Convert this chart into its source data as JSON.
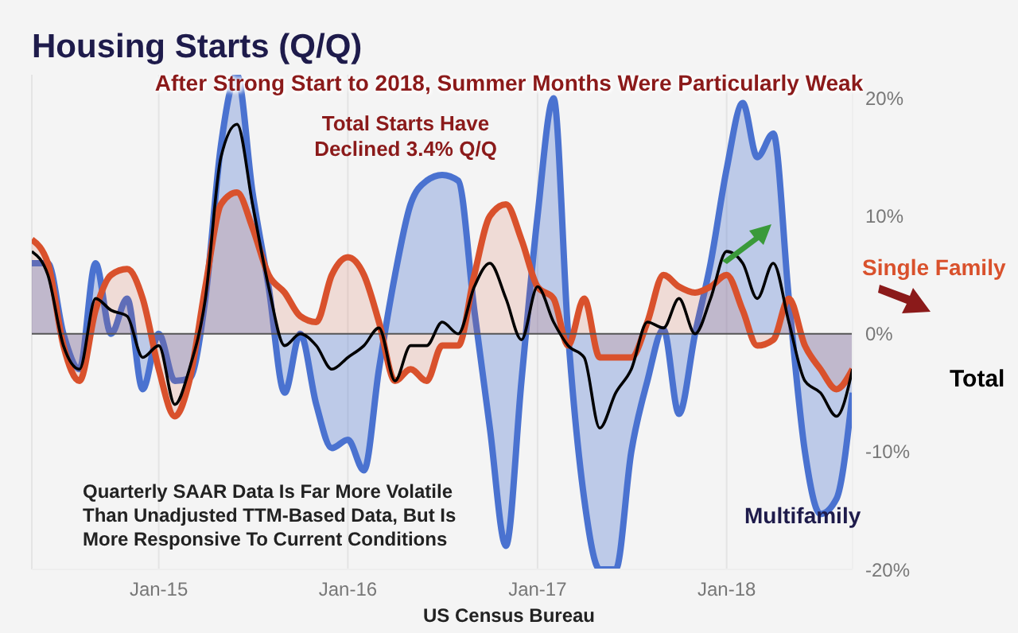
{
  "chart_data": {
    "type": "area",
    "title": "Housing Starts (Q/Q)",
    "subtitle": "After Strong Start to 2018, Summer Months Were Particularly Weak",
    "annotations": [
      "Total Starts Have Declined 3.4% Q/Q",
      "Quarterly SAAR Data Is Far More Volatile Than Unadjusted TTM-Based Data, But Is More Responsive To Current Conditions",
      "US Census Bureau"
    ],
    "x": [
      "2014-05",
      "2014-06",
      "2014-07",
      "2014-08",
      "2014-09",
      "2014-10",
      "2014-11",
      "2014-12",
      "2015-01",
      "2015-02",
      "2015-03",
      "2015-04",
      "2015-05",
      "2015-06",
      "2015-07",
      "2015-08",
      "2015-09",
      "2015-10",
      "2015-11",
      "2015-12",
      "2016-01",
      "2016-02",
      "2016-03",
      "2016-04",
      "2016-05",
      "2016-06",
      "2016-07",
      "2016-08",
      "2016-09",
      "2016-10",
      "2016-11",
      "2016-12",
      "2017-01",
      "2017-02",
      "2017-03",
      "2017-04",
      "2017-05",
      "2017-06",
      "2017-07",
      "2017-08",
      "2017-09",
      "2017-10",
      "2017-11",
      "2017-12",
      "2018-01",
      "2018-02",
      "2018-03",
      "2018-04",
      "2018-05",
      "2018-06",
      "2018-07",
      "2018-08",
      "2018-09"
    ],
    "series": [
      {
        "name": "Multifamily",
        "type": "area",
        "color": "#4a72d0",
        "values": [
          6,
          6,
          0,
          -3,
          6,
          0,
          3,
          -4.7,
          0,
          -4,
          -3.8,
          3,
          16,
          22,
          12,
          4,
          -5,
          0,
          -6,
          -9.7,
          -9,
          -11.6,
          -3,
          5,
          11,
          13,
          13.5,
          13,
          2,
          -8,
          -18,
          -4,
          10,
          20,
          0,
          -14,
          -20,
          -20,
          -10,
          -4,
          0.4,
          -6.8,
          0,
          6,
          14,
          19.6,
          15,
          17,
          3,
          -10,
          -15.3,
          -14,
          -5
        ]
      },
      {
        "name": "Single Family",
        "type": "area",
        "color": "#d9512c",
        "values": [
          8,
          6,
          -1,
          -4,
          2,
          5,
          5.5,
          3,
          -3,
          -7,
          -4,
          4,
          11,
          12,
          9,
          5,
          3.5,
          1.5,
          1,
          5,
          6.5,
          5,
          1,
          -4,
          -3,
          -4,
          -1,
          -1,
          5,
          10,
          11,
          8,
          4,
          3,
          -1,
          3,
          -2,
          -2,
          -2,
          1,
          5,
          4,
          3.5,
          4,
          5,
          2,
          -1,
          -0.5,
          3,
          -1,
          -3,
          -4.7,
          -3
        ]
      },
      {
        "name": "Total",
        "type": "line",
        "color": "#000000",
        "values": [
          7,
          5,
          -1,
          -3,
          3,
          2,
          1.5,
          -2,
          -1,
          -6,
          -3,
          3,
          15,
          17.8,
          11,
          4,
          -1,
          0,
          -1,
          -3,
          -2,
          -1,
          0.5,
          -4,
          -1,
          -1,
          1,
          0,
          4,
          6,
          3,
          -0.5,
          4,
          1,
          -1,
          -2,
          -8,
          -5,
          -3,
          1,
          0.5,
          3,
          0,
          3,
          7,
          6,
          3,
          6,
          1,
          -4,
          -5,
          -7,
          -3
        ]
      }
    ],
    "xlim": [
      "2014-05",
      "2018-09"
    ],
    "xticks": [
      {
        "value": "2015-01",
        "label": "Jan-15"
      },
      {
        "value": "2016-01",
        "label": "Jan-16"
      },
      {
        "value": "2017-01",
        "label": "Jan-17"
      },
      {
        "value": "2018-01",
        "label": "Jan-18"
      }
    ],
    "ylim": [
      -20,
      22
    ],
    "yticks": [
      {
        "value": -20,
        "label": "-20%"
      },
      {
        "value": -10,
        "label": "-10%"
      },
      {
        "value": 0,
        "label": "0%"
      },
      {
        "value": 10,
        "label": "10%"
      },
      {
        "value": 20,
        "label": "20%"
      }
    ],
    "ref_lines": [
      {
        "axis": "y",
        "value": 0,
        "color": "#555555"
      }
    ],
    "grid": "x",
    "legend": false,
    "marker": "none"
  }
}
